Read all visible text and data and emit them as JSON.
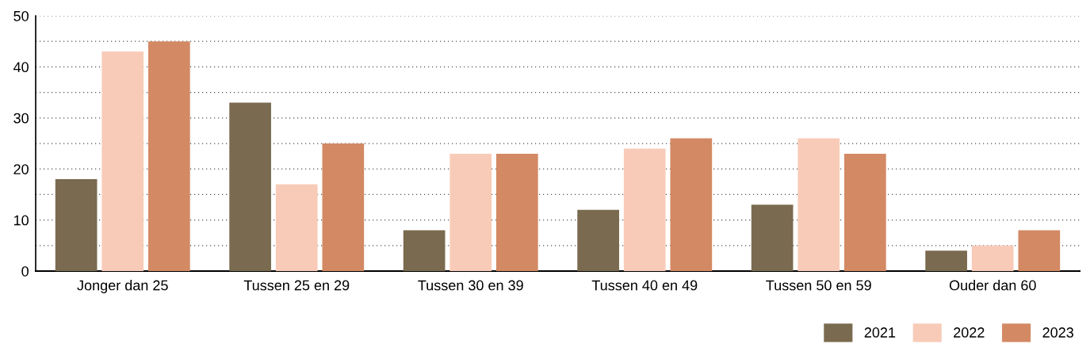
{
  "chart_data": {
    "type": "bar",
    "categories": [
      "Jonger dan 25",
      "Tussen 25 en 29",
      "Tussen 30 en 39",
      "Tussen 40 en 49",
      "Tussen 50 en 59",
      "Ouder dan 60"
    ],
    "series": [
      {
        "name": "2021",
        "color": "#7a6a4f",
        "values": [
          18,
          33,
          8,
          12,
          13,
          4
        ]
      },
      {
        "name": "2022",
        "color": "#f8cbb8",
        "values": [
          43,
          17,
          23,
          24,
          26,
          5
        ]
      },
      {
        "name": "2023",
        "color": "#d38963",
        "values": [
          45,
          25,
          23,
          26,
          23,
          8
        ]
      }
    ],
    "ylim": [
      0,
      50
    ],
    "yticks": [
      0,
      {
        "value": 5,
        "label": null
      },
      10,
      {
        "value": 15,
        "label": null
      },
      20,
      {
        "value": 25,
        "label": null
      },
      30,
      {
        "value": 35,
        "label": null
      },
      40,
      {
        "value": 45,
        "label": null
      },
      50
    ],
    "grid": "y",
    "legend": "bottom right"
  }
}
